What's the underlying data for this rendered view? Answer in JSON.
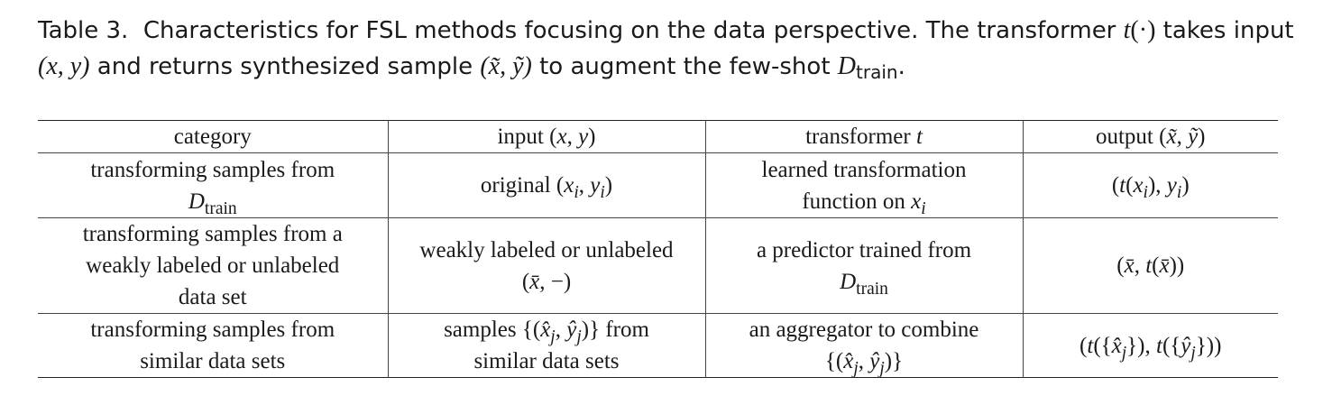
{
  "caption": {
    "label": "Table 3.",
    "text_1": "Characteristics for FSL methods focusing on the data perspective. The transformer",
    "t_func": "t",
    "t_arg": "(·)",
    "text_2": "takes input",
    "xy_input": "(x, y)",
    "text_3": "and returns synthesized sample",
    "xy_tilde": "(x̃, ỹ)",
    "text_4": "to augment the few-shot",
    "d_letter": "D",
    "d_sub": "train",
    "end": "."
  },
  "table": {
    "headers": [
      "category",
      "input (x, y)",
      "transformer t",
      "output (x̃, ỹ)"
    ],
    "rows": [
      {
        "category": "transforming samples from Dtrain",
        "input": "original (xi, yi)",
        "transformer": "learned transformation function on xi",
        "output": "(t(xi), yi)"
      },
      {
        "category": "transforming samples from a weakly labeled or unlabeled data set",
        "input": "weakly labeled or unlabeled (x̄, −)",
        "transformer": "a predictor trained from Dtrain",
        "output": "(x̄, t(x̄))"
      },
      {
        "category": "transforming samples from similar data sets",
        "input": "samples {(x̂j, ŷj)} from similar data sets",
        "transformer": "an aggregator to combine {(x̂j, ŷj)}",
        "output": "(t({x̂j}), t({ŷj}))"
      }
    ]
  }
}
